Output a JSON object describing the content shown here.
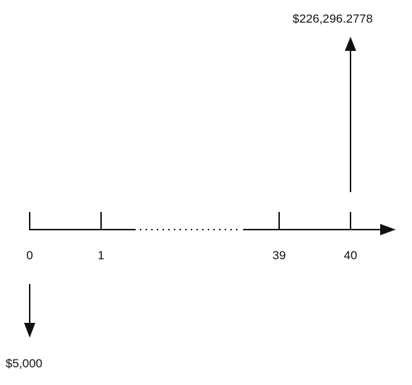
{
  "timeline": {
    "periods": [
      {
        "label": "0"
      },
      {
        "label": "1"
      },
      {
        "label": "39"
      },
      {
        "label": "40"
      }
    ],
    "gap": "......"
  },
  "cash_flows": {
    "outflow": {
      "label": "$5,000",
      "period": "0",
      "direction": "down"
    },
    "inflow": {
      "label": "$226,296.2778",
      "period": "40",
      "direction": "up"
    }
  },
  "colors": {
    "line": "#111111",
    "text": "#111111"
  }
}
